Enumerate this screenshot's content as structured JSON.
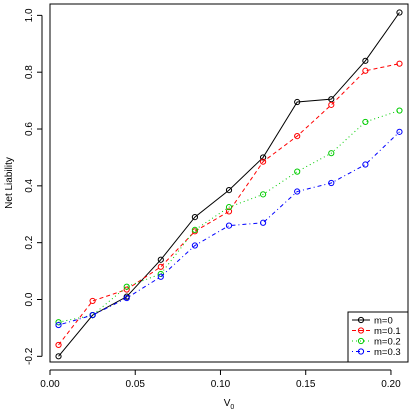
{
  "chart_data": {
    "type": "line",
    "title": "",
    "xlabel": "V",
    "xlabel_subscript": "0",
    "ylabel": "Net Liability",
    "xlim": [
      0.0,
      0.21
    ],
    "ylim": [
      -0.22,
      1.04
    ],
    "xticks": [
      0.0,
      0.05,
      0.1,
      0.15,
      0.2
    ],
    "xtick_labels": [
      "0.00",
      "0.05",
      "0.10",
      "0.15",
      "0.20"
    ],
    "yticks": [
      -0.2,
      0.0,
      0.2,
      0.4,
      0.6,
      0.8,
      1.0
    ],
    "ytick_labels": [
      "-0.2",
      "0.0",
      "0.2",
      "0.4",
      "0.6",
      "0.8",
      "1.0"
    ],
    "grid": false,
    "legend_position": "bottom-right",
    "x": [
      0.005,
      0.025,
      0.045,
      0.065,
      0.085,
      0.105,
      0.125,
      0.145,
      0.165,
      0.185,
      0.205
    ],
    "series": [
      {
        "name": "m=0",
        "color": "#000000",
        "dash": "solid",
        "values": [
          -0.2,
          -0.055,
          0.01,
          0.14,
          0.29,
          0.385,
          0.5,
          0.695,
          0.705,
          0.84,
          1.01
        ]
      },
      {
        "name": "m=0.1",
        "color": "#ff0000",
        "dash": "dashed",
        "values": [
          -0.16,
          -0.005,
          0.035,
          0.115,
          0.24,
          0.31,
          0.485,
          0.575,
          0.685,
          0.805,
          0.83
        ]
      },
      {
        "name": "m=0.2",
        "color": "#00cc00",
        "dash": "dotted",
        "values": [
          -0.08,
          -0.055,
          0.045,
          0.09,
          0.245,
          0.325,
          0.37,
          0.45,
          0.515,
          0.625,
          0.665
        ]
      },
      {
        "name": "m=0.3",
        "color": "#0000ff",
        "dash": "dotdash",
        "values": [
          -0.09,
          -0.055,
          0.005,
          0.08,
          0.19,
          0.26,
          0.27,
          0.38,
          0.41,
          0.475,
          0.59
        ]
      }
    ]
  }
}
